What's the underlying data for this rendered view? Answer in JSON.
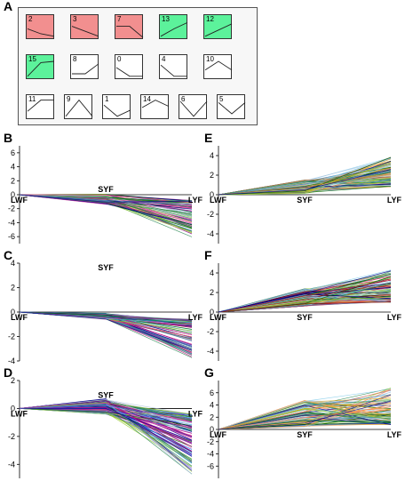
{
  "panel_letters": {
    "A": "A",
    "B": "B",
    "C": "C",
    "D": "D",
    "E": "E",
    "F": "F",
    "G": "G"
  },
  "profiles": [
    {
      "num": "2",
      "color": "#f28f8f",
      "shape": [
        0.55,
        0.75,
        0.85
      ]
    },
    {
      "num": "3",
      "color": "#f28f8f",
      "shape": [
        0.45,
        0.65,
        0.85
      ]
    },
    {
      "num": "7",
      "color": "#f28f8f",
      "shape": [
        0.45,
        0.45,
        0.9
      ]
    },
    {
      "num": "13",
      "color": "#5cf29b",
      "shape": [
        0.85,
        0.55,
        0.3
      ]
    },
    {
      "num": "12",
      "color": "#5cf29b",
      "shape": [
        0.85,
        0.6,
        0.35
      ]
    },
    {
      "num": "15",
      "color": "#5cf29b",
      "shape": [
        0.85,
        0.3,
        0.25
      ]
    },
    {
      "num": "8",
      "color": "#ffffff",
      "shape": [
        0.75,
        0.75,
        0.35
      ]
    },
    {
      "num": "0",
      "color": "#ffffff",
      "shape": [
        0.5,
        0.85,
        0.85
      ]
    },
    {
      "num": "4",
      "color": "#ffffff",
      "shape": [
        0.4,
        0.85,
        0.85
      ]
    },
    {
      "num": "10",
      "color": "#ffffff",
      "shape": [
        0.6,
        0.25,
        0.6
      ]
    },
    {
      "num": "11",
      "color": "#ffffff",
      "shape": [
        0.65,
        0.2,
        0.2
      ]
    },
    {
      "num": "9",
      "color": "#ffffff",
      "shape": [
        0.85,
        0.2,
        0.85
      ]
    },
    {
      "num": "1",
      "color": "#ffffff",
      "shape": [
        0.4,
        0.85,
        0.6
      ]
    },
    {
      "num": "14",
      "color": "#ffffff",
      "shape": [
        0.5,
        0.2,
        0.45
      ]
    },
    {
      "num": "6",
      "color": "#ffffff",
      "shape": [
        0.25,
        0.85,
        0.25
      ]
    },
    {
      "num": "5",
      "color": "#ffffff",
      "shape": [
        0.3,
        0.75,
        0.3
      ]
    }
  ],
  "chart_data": [
    {
      "panel": "B",
      "type": "line",
      "categories": [
        "LWF",
        "SYF",
        "LYF"
      ],
      "ylim": [
        -7,
        7
      ],
      "yticks": [
        "6",
        "4",
        "2",
        "0",
        "-2",
        "-4",
        "-6"
      ],
      "ytick_values": [
        6,
        4,
        2,
        0,
        -2,
        -4,
        -6
      ],
      "n_lines": 90,
      "mid_range": [
        -1.4,
        0.1
      ],
      "end_range": [
        -6.2,
        -0.8
      ],
      "seed": 11,
      "series_colors": [
        "#ff69b4",
        "#8b008b",
        "#006400",
        "#228b22",
        "#4682b4",
        "#9acd32",
        "#b0c4de",
        "#c71585",
        "#2e8b57",
        "#00008b"
      ]
    },
    {
      "panel": "C",
      "type": "line",
      "categories": [
        "LWF",
        "SYF",
        "LYF"
      ],
      "ylim": [
        -4,
        4
      ],
      "yticks": [
        "4",
        "2",
        "0",
        "-2",
        "-4"
      ],
      "ytick_values": [
        4,
        2,
        0,
        -2,
        -4
      ],
      "n_lines": 90,
      "mid_range": [
        -0.6,
        -0.1
      ],
      "end_range": [
        -3.8,
        -0.6
      ],
      "seed": 23,
      "series_colors": [
        "#c71585",
        "#ff1493",
        "#006400",
        "#2e8b57",
        "#4682b4",
        "#9acd32",
        "#b0c4de",
        "#8b008b",
        "#20b2aa",
        "#00008b"
      ]
    },
    {
      "panel": "D",
      "type": "line",
      "categories": [
        "LWF",
        "SYF",
        "LYF"
      ],
      "ylim": [
        -5,
        2
      ],
      "yticks": [
        "2",
        "0",
        "-2",
        "-4"
      ],
      "ytick_values": [
        2,
        0,
        -2,
        -4
      ],
      "n_lines": 110,
      "mid_range": [
        -0.4,
        0.7
      ],
      "end_range": [
        -4.8,
        -0.4
      ],
      "seed": 37,
      "series_colors": [
        "#c71585",
        "#ff69b4",
        "#006400",
        "#2e8b57",
        "#1e90ff",
        "#9acd32",
        "#b0c4de",
        "#8b008b",
        "#00008b",
        "#6a5acd"
      ]
    },
    {
      "panel": "E",
      "type": "line",
      "categories": [
        "LWF",
        "SYF",
        "LYF"
      ],
      "ylim": [
        -5,
        5
      ],
      "yticks": [
        "4",
        "2",
        "0",
        "-2",
        "-4"
      ],
      "ytick_values": [
        4,
        2,
        0,
        -2,
        -4
      ],
      "n_lines": 90,
      "mid_range": [
        0.1,
        1.5
      ],
      "end_range": [
        0.8,
        4.1
      ],
      "seed": 51,
      "series_colors": [
        "#f4a460",
        "#9acd32",
        "#b0c4de",
        "#4682b4",
        "#2e8b57",
        "#daa520",
        "#87ceeb",
        "#006400",
        "#cd853f",
        "#00008b"
      ]
    },
    {
      "panel": "F",
      "type": "line",
      "categories": [
        "LWF",
        "SYF",
        "LYF"
      ],
      "ylim": [
        -5,
        5
      ],
      "yticks": [
        "4",
        "2",
        "0",
        "-2",
        "-4"
      ],
      "ytick_values": [
        4,
        2,
        0,
        -2,
        -4
      ],
      "n_lines": 110,
      "mid_range": [
        0.6,
        2.4
      ],
      "end_range": [
        1.0,
        4.3
      ],
      "seed": 67,
      "series_colors": [
        "#f4a460",
        "#4682b4",
        "#b0c4de",
        "#2e8b57",
        "#006400",
        "#9acd32",
        "#dc143c",
        "#8b0000",
        "#87ceeb",
        "#00008b"
      ]
    },
    {
      "panel": "G",
      "type": "line",
      "categories": [
        "LWF",
        "SYF",
        "LYF"
      ],
      "ylim": [
        -8,
        8
      ],
      "yticks": [
        "6",
        "4",
        "2",
        "0",
        "-2",
        "-4",
        "-6"
      ],
      "ytick_values": [
        6,
        4,
        2,
        0,
        -2,
        -4,
        -6
      ],
      "n_lines": 90,
      "mid_range": [
        0.4,
        4.8
      ],
      "end_range": [
        0.8,
        6.8
      ],
      "seed": 83,
      "series_colors": [
        "#87ceeb",
        "#f4a460",
        "#b0c4de",
        "#9acd32",
        "#2e8b57",
        "#4682b4",
        "#daa520",
        "#006400",
        "#ff7f50",
        "#00008b"
      ]
    }
  ]
}
